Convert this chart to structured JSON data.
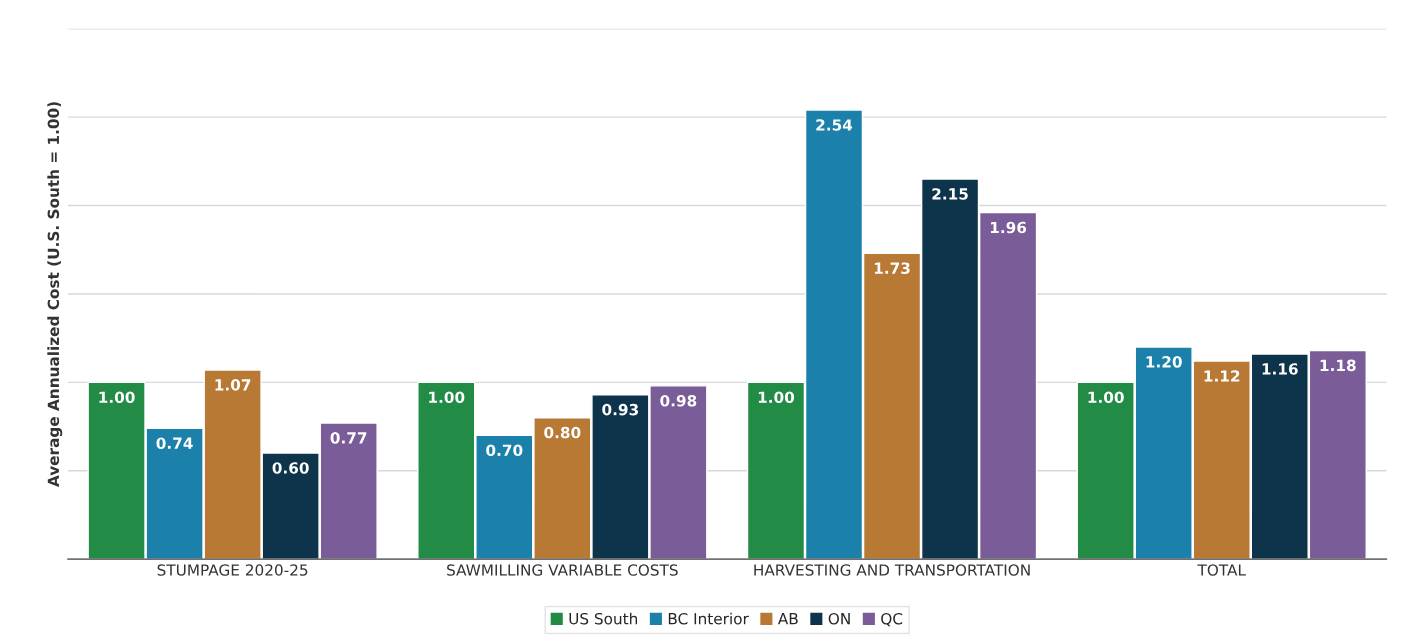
{
  "chart_data": {
    "type": "bar",
    "ylabel": "Average Annualized Cost (U.S. South = 1.00)",
    "categories": [
      "STUMPAGE 2020-25",
      "SAWMILLING VARIABLE COSTS",
      "HARVESTING AND TRANSPORTATION",
      "TOTAL"
    ],
    "series": [
      {
        "name": "US South",
        "color": "#228b45",
        "values": [
          1.0,
          1.0,
          1.0,
          1.0
        ],
        "value_labels": [
          "1.00",
          "1.00",
          "1.00",
          "1.00"
        ]
      },
      {
        "name": "BC Interior",
        "color": "#1b80aa",
        "values": [
          0.74,
          0.7,
          2.54,
          1.2
        ],
        "value_labels": [
          "0.74",
          "0.70",
          "2.54",
          "1.20"
        ]
      },
      {
        "name": "AB",
        "color": "#b87935",
        "values": [
          1.07,
          0.8,
          1.73,
          1.12
        ],
        "value_labels": [
          "1.07",
          "0.80",
          "1.73",
          "1.12"
        ]
      },
      {
        "name": "ON",
        "color": "#0e344c",
        "values": [
          0.6,
          0.93,
          2.15,
          1.16
        ],
        "value_labels": [
          "0.60",
          "0.93",
          "2.15",
          "1.16"
        ]
      },
      {
        "name": "QC",
        "color": "#7a5c98",
        "values": [
          0.77,
          0.98,
          1.96,
          1.18
        ],
        "value_labels": [
          "0.77",
          "0.98",
          "1.96",
          "1.18"
        ]
      }
    ],
    "ylim": [
      0,
      3
    ],
    "yticks": [
      {
        "value": 0,
        "label": null
      },
      {
        "value": 0.5,
        "label": null
      },
      {
        "value": 1,
        "label": null
      },
      {
        "value": 1.5,
        "label": null
      },
      {
        "value": 2,
        "label": null
      },
      {
        "value": 2.5,
        "label": null
      },
      {
        "value": 3,
        "label": null
      }
    ],
    "tick_labels": "x",
    "grid": "y",
    "legend": "bottom"
  }
}
